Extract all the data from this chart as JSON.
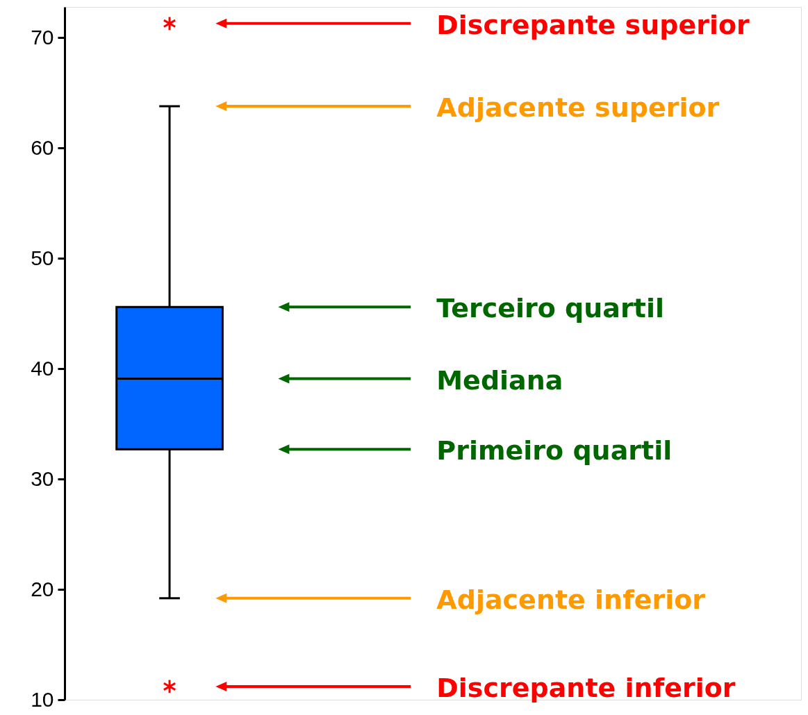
{
  "chart_data": {
    "type": "box",
    "categories": [
      null
    ],
    "series": [
      {
        "type": "box",
        "color": "#0066ff",
        "boxes": [
          {
            "low": 19.2,
            "q1": 32.7,
            "median": 39.1,
            "q3": 45.6,
            "high": 63.8,
            "outliers": [
              71.3,
              11.2
            ]
          }
        ]
      }
    ],
    "ylim": [
      10,
      72.8
    ],
    "yticks": [
      10,
      20,
      30,
      40,
      50,
      60,
      70
    ],
    "grid": false,
    "annotations": [
      "Discrepante superior",
      "Adjacente superior",
      "Terceiro quartil",
      "Mediana",
      "Primeiro quartil",
      "Adjacente inferior",
      "Discrepante inferior"
    ]
  }
}
